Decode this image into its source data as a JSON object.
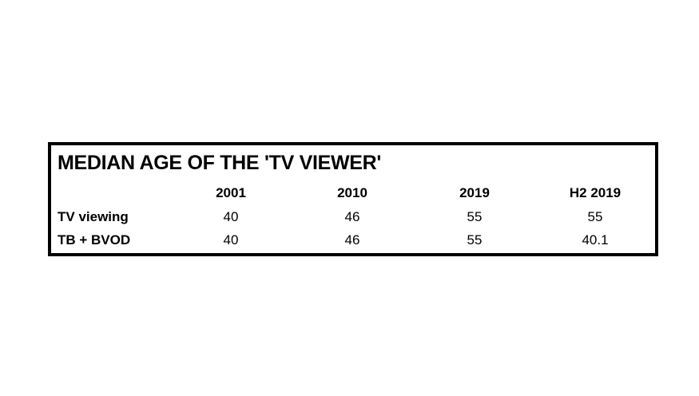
{
  "table": {
    "title": "MEDIAN AGE OF THE 'TV VIEWER'",
    "columns": [
      "2001",
      "2010",
      "2019",
      "H2 2019"
    ],
    "rows": [
      {
        "label": "TV viewing",
        "cells": [
          40,
          46,
          55,
          55
        ]
      },
      {
        "label": "TB + BVOD",
        "cells": [
          40,
          46,
          55,
          40.1
        ]
      }
    ]
  }
}
